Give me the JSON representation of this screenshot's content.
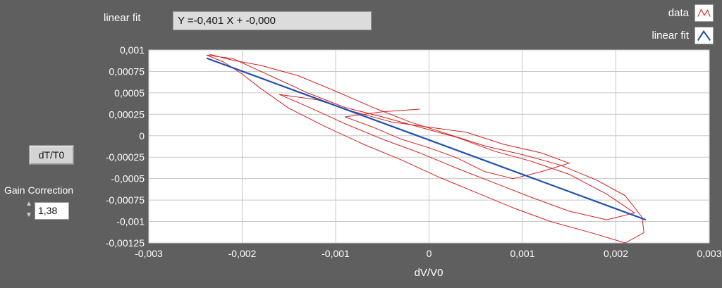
{
  "fit_panel": {
    "label": "linear fit",
    "equation": "Y =-0,401 X + -0,000"
  },
  "legend": [
    {
      "label": "data",
      "color": "#d42020",
      "icon": "line-sample-icon"
    },
    {
      "label": "linear fit",
      "color": "#1f4fb4",
      "icon": "line-sample-icon"
    }
  ],
  "controls": {
    "dt_button": "dT/T0",
    "gain_label": "Gain Correction",
    "gain_value": "1,38"
  },
  "chart_data": {
    "type": "line",
    "xlabel": "dV/V0",
    "ylabel": "",
    "xlim": [
      -0.003,
      0.003
    ],
    "ylim": [
      -0.00125,
      0.001
    ],
    "x_ticks": [
      "-0,003",
      "-0,002",
      "-0,001",
      "0",
      "0,001",
      "0,002",
      "0,003"
    ],
    "y_ticks": [
      "0,001",
      "0,00075",
      "0,0005",
      "0,00025",
      "0",
      "-0,00025",
      "-0,0005",
      "-0,00075",
      "-0,001",
      "-0,00125"
    ],
    "grid": true,
    "legend_position": "top-right",
    "series": [
      {
        "name": "data",
        "color": "#d42020",
        "points": [
          [
            -0.00235,
            0.00095
          ],
          [
            -0.0021,
            0.00088
          ],
          [
            -0.0018,
            0.00082
          ],
          [
            -0.0014,
            0.0007
          ],
          [
            -0.001,
            0.00052
          ],
          [
            -0.0006,
            0.00033
          ],
          [
            -0.0002,
            0.00016
          ],
          [
            0.0002,
            2e-05
          ],
          [
            0.0006,
            -0.00012
          ],
          [
            0.001,
            -0.00022
          ],
          [
            0.0014,
            -0.00034
          ],
          [
            0.0018,
            -0.00052
          ],
          [
            0.0021,
            -0.0007
          ],
          [
            0.00228,
            -0.00095
          ],
          [
            0.0023,
            -0.00113
          ],
          [
            0.0021,
            -0.00125
          ],
          [
            0.0017,
            -0.00112
          ],
          [
            0.0013,
            -0.001
          ],
          [
            0.0009,
            -0.00084
          ],
          [
            0.0005,
            -0.00066
          ],
          [
            0.0001,
            -0.00048
          ],
          [
            -0.0003,
            -0.00028
          ],
          [
            -0.0007,
            -0.0001
          ],
          [
            -0.0011,
            0.0001
          ],
          [
            -0.0015,
            0.00032
          ],
          [
            -0.0018,
            0.00055
          ],
          [
            -0.002,
            0.00072
          ],
          [
            -0.0022,
            0.00086
          ],
          [
            -0.00238,
            0.00094
          ],
          [
            -0.0021,
            0.0009
          ],
          [
            -0.0017,
            0.0007
          ],
          [
            -0.0013,
            0.0005
          ],
          [
            -0.0009,
            0.00033
          ],
          [
            -0.0005,
            0.00022
          ],
          [
            -0.0001,
            0.0001
          ],
          [
            0.0003,
            -2e-05
          ],
          [
            0.0007,
            -0.00018
          ],
          [
            0.0011,
            -0.0003
          ],
          [
            0.0015,
            -0.00045
          ],
          [
            0.0019,
            -0.00068
          ],
          [
            0.0022,
            -0.0009
          ],
          [
            0.0019,
            -0.00098
          ],
          [
            0.0015,
            -0.00088
          ],
          [
            0.0011,
            -0.00072
          ],
          [
            0.0007,
            -0.00055
          ],
          [
            0.0003,
            -0.00038
          ],
          [
            -0.0001,
            -0.0002
          ],
          [
            -0.0005,
            -4e-05
          ],
          [
            -0.0009,
            0.00014
          ],
          [
            -0.0013,
            0.00034
          ],
          [
            -0.0016,
            0.00048
          ],
          [
            -0.0012,
            0.00042
          ],
          [
            -0.0008,
            0.00028
          ],
          [
            -0.0004,
            0.00016
          ],
          [
            0.0,
            0.0001
          ],
          [
            0.0004,
            4e-05
          ],
          [
            0.0008,
            -0.0001
          ],
          [
            0.0012,
            -0.0002
          ],
          [
            0.0015,
            -0.00032
          ],
          [
            0.0012,
            -0.00042
          ],
          [
            0.0009,
            -0.0005
          ],
          [
            0.0006,
            -0.00042
          ],
          [
            0.0003,
            -0.00026
          ],
          [
            0.0,
            -0.00014
          ],
          [
            -0.0003,
            -4e-05
          ],
          [
            -0.0006,
            0.0001
          ],
          [
            -0.0009,
            0.00022
          ],
          [
            -0.0005,
            0.00028
          ],
          [
            -0.0001,
            0.00031
          ]
        ]
      },
      {
        "name": "linear fit",
        "color": "#1f4fb4",
        "points": [
          [
            -0.00238,
            0.000905
          ],
          [
            0.00232,
            -0.00098
          ]
        ]
      }
    ]
  }
}
